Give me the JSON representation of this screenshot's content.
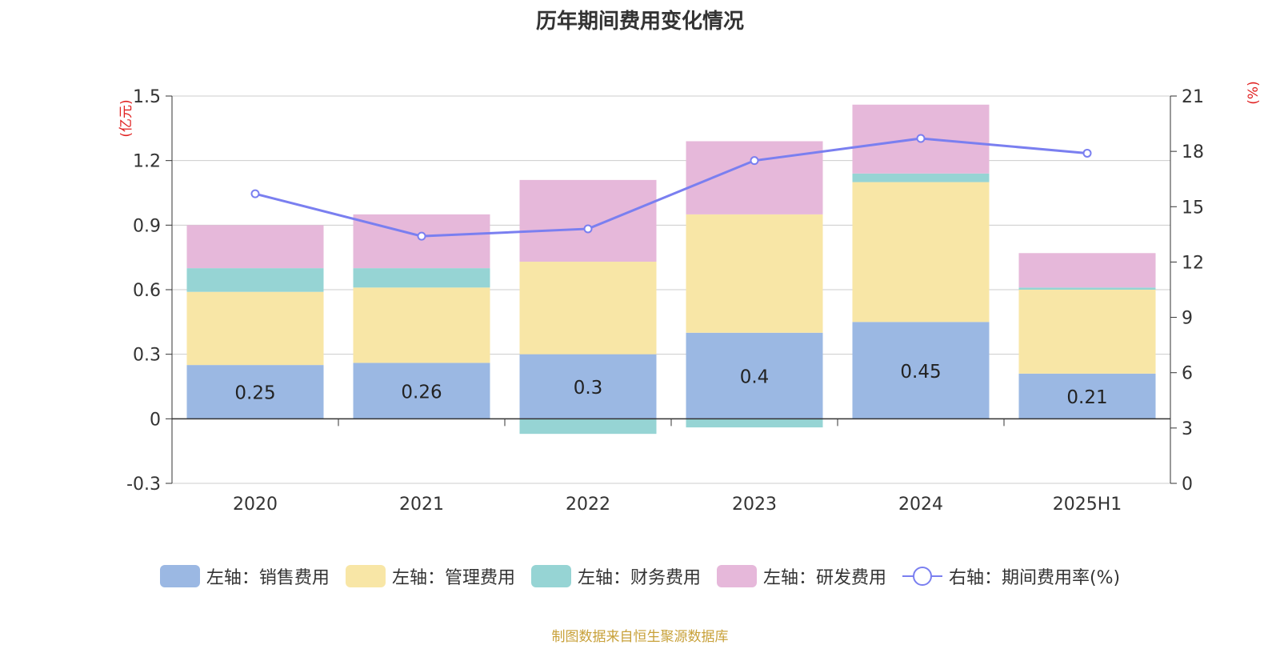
{
  "title": "历年期间费用变化情况",
  "left_axis_unit": "(亿元)",
  "right_axis_unit": "(%)",
  "source": "制图数据来自恒生聚源数据库",
  "colors": {
    "sales": "#9bb8e3",
    "admin": "#f8e6a6",
    "finance": "#96d4d4",
    "rnd": "#e6b8da",
    "rate_line": "#7a7ff0",
    "grid": "#cccccc"
  },
  "legend": [
    {
      "label": "左轴：销售费用",
      "color": "#9bb8e3",
      "kind": "box"
    },
    {
      "label": "左轴：管理费用",
      "color": "#f8e6a6",
      "kind": "box"
    },
    {
      "label": "左轴：财务费用",
      "color": "#96d4d4",
      "kind": "box"
    },
    {
      "label": "左轴：研发费用",
      "color": "#e6b8da",
      "kind": "box"
    },
    {
      "label": "右轴：期间费用率(%)",
      "color": "#7a7ff0",
      "kind": "line"
    }
  ],
  "chart_data": {
    "type": "bar",
    "stacked": true,
    "categories": [
      "2020",
      "2021",
      "2022",
      "2023",
      "2024",
      "2025H1"
    ],
    "series": [
      {
        "name": "左轴：销售费用",
        "axis": "left",
        "values": [
          0.25,
          0.26,
          0.3,
          0.4,
          0.45,
          0.21
        ],
        "show_labels": true
      },
      {
        "name": "左轴：管理费用",
        "axis": "left",
        "values": [
          0.34,
          0.35,
          0.43,
          0.55,
          0.65,
          0.39
        ]
      },
      {
        "name": "左轴：财务费用",
        "axis": "left",
        "values": [
          0.11,
          0.09,
          -0.07,
          -0.04,
          0.04,
          0.01
        ]
      },
      {
        "name": "左轴：研发费用",
        "axis": "left",
        "values": [
          0.2,
          0.25,
          0.38,
          0.34,
          0.32,
          0.16
        ]
      },
      {
        "name": "右轴：期间费用率(%)",
        "axis": "right",
        "type": "line",
        "values": [
          15.7,
          13.4,
          13.8,
          17.5,
          18.7,
          17.9
        ]
      }
    ],
    "left_axis": {
      "ticks": [
        "1.5",
        "1.2",
        "0.9",
        "0.6",
        "0.3",
        "0",
        "-0.3"
      ],
      "min": -0.3,
      "max": 1.5
    },
    "right_axis": {
      "ticks": [
        "21",
        "18",
        "15",
        "12",
        "9",
        "6",
        "3",
        "0"
      ],
      "min": 0,
      "max": 21
    },
    "grid": true,
    "legend_position": "bottom"
  }
}
